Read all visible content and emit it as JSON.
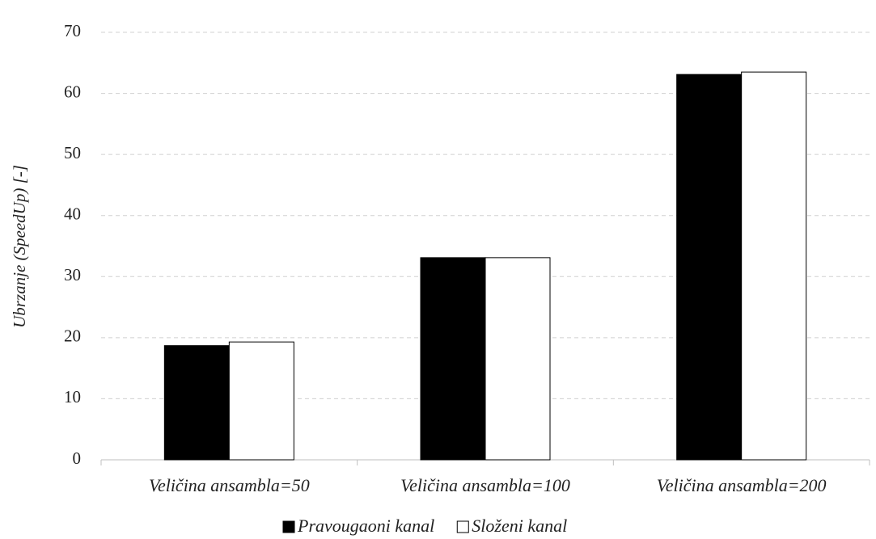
{
  "chart_data": {
    "type": "bar",
    "y_label": "Ubrzanje (SpeedUp) [-]",
    "categories": [
      "Veličina ansambla=50",
      "Veličina ansambla=100",
      "Veličina ansambla=200"
    ],
    "series": [
      {
        "name": "Pravougaoni kanal",
        "color": "#000000",
        "values": [
          18.7,
          33.1,
          63.1
        ]
      },
      {
        "name": "Složeni kanal",
        "color": "#ffffff",
        "values": [
          19.3,
          33.1,
          63.5
        ]
      }
    ],
    "ylim": [
      0,
      70
    ],
    "yticks": [
      0,
      10,
      20,
      30,
      40,
      50,
      60,
      70
    ],
    "grid": true,
    "legend": "bottom"
  }
}
